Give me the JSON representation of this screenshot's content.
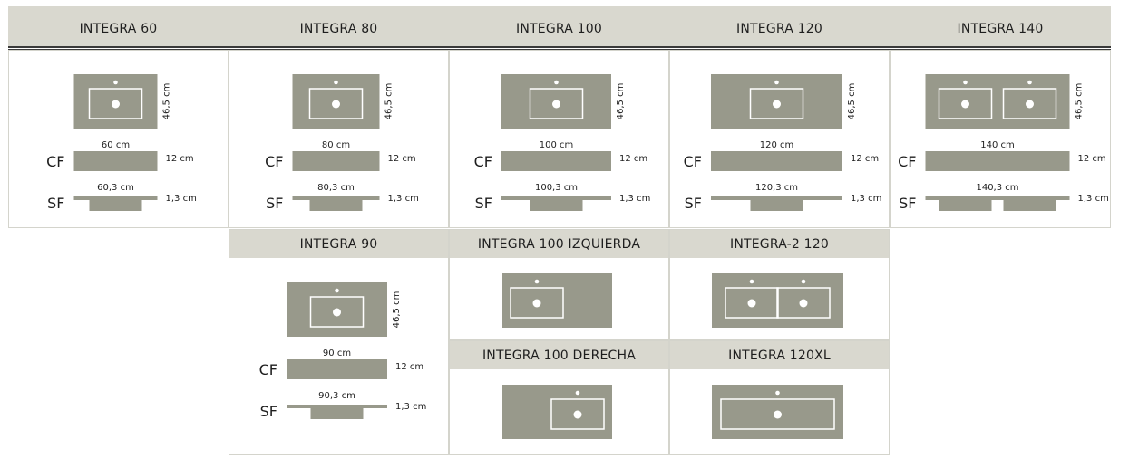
{
  "colors": {
    "header_bg": "#d9d8cf",
    "stone": "#98998b",
    "border": "#d4d4cc",
    "rule": "#3a3a3a"
  },
  "top_row": [
    {
      "title": "INTEGRA 60",
      "depth": "46,5 cm",
      "cf_label": "CF",
      "sf_label": "SF",
      "cf_width": "60 cm",
      "cf_height": "12 cm",
      "sf_width": "60,3 cm",
      "sf_height": "1,3 cm",
      "sinks": "center"
    },
    {
      "title": "INTEGRA 80",
      "depth": "46,5 cm",
      "cf_label": "CF",
      "sf_label": "SF",
      "cf_width": "80 cm",
      "cf_height": "12 cm",
      "sf_width": "80,3 cm",
      "sf_height": "1,3 cm",
      "sinks": "center"
    },
    {
      "title": "INTEGRA 100",
      "depth": "46,5 cm",
      "cf_label": "CF",
      "sf_label": "SF",
      "cf_width": "100 cm",
      "cf_height": "12 cm",
      "sf_width": "100,3 cm",
      "sf_height": "1,3 cm",
      "sinks": "center"
    },
    {
      "title": "INTEGRA 120",
      "depth": "46,5 cm",
      "cf_label": "CF",
      "sf_label": "SF",
      "cf_width": "120 cm",
      "cf_height": "12 cm",
      "sf_width": "120,3 cm",
      "sf_height": "1,3 cm",
      "sinks": "center"
    },
    {
      "title": "INTEGRA 140",
      "depth": "46,5 cm",
      "cf_label": "CF",
      "sf_label": "SF",
      "cf_width": "140 cm",
      "cf_height": "12 cm",
      "sf_width": "140,3 cm",
      "sf_height": "1,3 cm",
      "sinks": "double"
    }
  ],
  "integra_90": {
    "title": "INTEGRA 90",
    "depth": "46,5 cm",
    "cf_label": "CF",
    "sf_label": "SF",
    "cf_width": "90 cm",
    "cf_height": "12 cm",
    "sf_width": "90,3 cm",
    "sf_height": "1,3 cm",
    "sinks": "center"
  },
  "variants": [
    {
      "title": "INTEGRA 100 IZQUIERDA",
      "sinks": "left"
    },
    {
      "title": "INTEGRA-2 120",
      "sinks": "double"
    },
    {
      "title": "INTEGRA 100 DERECHA",
      "sinks": "right"
    },
    {
      "title": "INTEGRA 120XL",
      "sinks": "wide"
    }
  ]
}
